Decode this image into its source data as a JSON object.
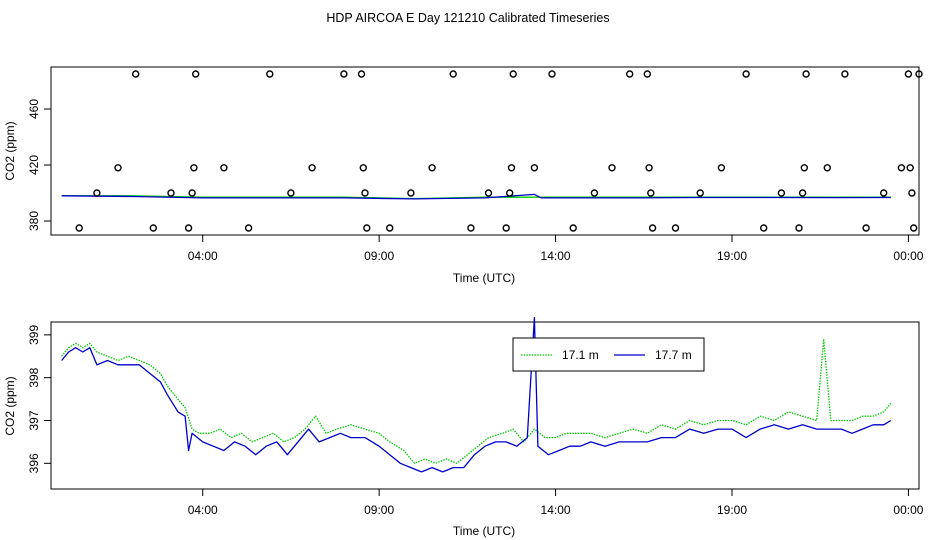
{
  "title": "HDP AIRCOA E  Day 121210  Calibrated Timeseries",
  "chart_data": [
    {
      "type": "line",
      "panel": "top",
      "xlabel": "Time (UTC)",
      "ylabel": "CO2 (ppm)",
      "x_unit": "hour",
      "xlim": [
        -0.3,
        24.3
      ],
      "ylim": [
        370,
        490
      ],
      "xticks": [
        {
          "hour": 4,
          "label": "04:00"
        },
        {
          "hour": 9,
          "label": "09:00"
        },
        {
          "hour": 14,
          "label": "14:00"
        },
        {
          "hour": 19,
          "label": "19:00"
        },
        {
          "hour": 24,
          "label": "00:00"
        }
      ],
      "yticks": [
        380,
        420,
        460
      ],
      "series": [
        {
          "color": "#00cc00",
          "points": [
            [
              0,
              398
            ],
            [
              2,
              398
            ],
            [
              4,
              397
            ],
            [
              6,
              397
            ],
            [
              8,
              397
            ],
            [
              10,
              396
            ],
            [
              12,
              397
            ],
            [
              13.4,
              397
            ],
            [
              14,
              397
            ],
            [
              16,
              397
            ],
            [
              18,
              397
            ],
            [
              20,
              397
            ],
            [
              22,
              397
            ],
            [
              23.5,
              397
            ]
          ]
        },
        {
          "color": "#0000cc",
          "points": [
            [
              0,
              398
            ],
            [
              2,
              397.5
            ],
            [
              4,
              396.5
            ],
            [
              6,
              396.5
            ],
            [
              8,
              396.5
            ],
            [
              10,
              395.8
            ],
            [
              12,
              396.5
            ],
            [
              13.4,
              399
            ],
            [
              13.6,
              396.5
            ],
            [
              16,
              396.5
            ],
            [
              18,
              396.8
            ],
            [
              20,
              396.8
            ],
            [
              22,
              396.7
            ],
            [
              23.5,
              396.8
            ]
          ]
        }
      ],
      "reference_points": {
        "marker": "open-circle",
        "levels": [
          375,
          400,
          418,
          485
        ],
        "points": [
          [
            0.5,
            375
          ],
          [
            1,
            400
          ],
          [
            1.6,
            418
          ],
          [
            2.1,
            485
          ],
          [
            2.6,
            375
          ],
          [
            3.1,
            400
          ],
          [
            3.6,
            375
          ],
          [
            3.7,
            400
          ],
          [
            3.75,
            418
          ],
          [
            3.8,
            485
          ],
          [
            4.6,
            418
          ],
          [
            5.3,
            375
          ],
          [
            5.9,
            485
          ],
          [
            6.5,
            400
          ],
          [
            7.1,
            418
          ],
          [
            8,
            485
          ],
          [
            8.5,
            485
          ],
          [
            8.55,
            418
          ],
          [
            8.6,
            400
          ],
          [
            8.65,
            375
          ],
          [
            9.3,
            375
          ],
          [
            9.9,
            400
          ],
          [
            10.5,
            418
          ],
          [
            11.1,
            485
          ],
          [
            11.6,
            375
          ],
          [
            12.1,
            400
          ],
          [
            12.6,
            375
          ],
          [
            12.7,
            400
          ],
          [
            12.75,
            418
          ],
          [
            12.8,
            485
          ],
          [
            13.4,
            418
          ],
          [
            13.9,
            485
          ],
          [
            14.5,
            375
          ],
          [
            15.1,
            400
          ],
          [
            15.6,
            418
          ],
          [
            16.1,
            485
          ],
          [
            16.6,
            485
          ],
          [
            16.65,
            418
          ],
          [
            16.7,
            400
          ],
          [
            16.75,
            375
          ],
          [
            17.4,
            375
          ],
          [
            18.1,
            400
          ],
          [
            18.7,
            418
          ],
          [
            19.4,
            485
          ],
          [
            19.9,
            375
          ],
          [
            20.4,
            400
          ],
          [
            20.9,
            375
          ],
          [
            21,
            400
          ],
          [
            21.05,
            418
          ],
          [
            21.1,
            485
          ],
          [
            21.7,
            418
          ],
          [
            22.2,
            485
          ],
          [
            22.8,
            375
          ],
          [
            23.3,
            400
          ],
          [
            23.8,
            418
          ],
          [
            24.3,
            485
          ],
          [
            24.0,
            485
          ],
          [
            24.05,
            418
          ],
          [
            24.1,
            400
          ],
          [
            24.15,
            375
          ]
        ]
      }
    },
    {
      "type": "line",
      "panel": "bottom",
      "xlabel": "Time (UTC)",
      "ylabel": "CO2 (ppm)",
      "x_unit": "hour",
      "xlim": [
        -0.3,
        24.3
      ],
      "ylim": [
        395.4,
        399.3
      ],
      "xticks": [
        {
          "hour": 4,
          "label": "04:00"
        },
        {
          "hour": 9,
          "label": "09:00"
        },
        {
          "hour": 14,
          "label": "14:00"
        },
        {
          "hour": 19,
          "label": "19:00"
        },
        {
          "hour": 24,
          "label": "00:00"
        }
      ],
      "yticks": [
        396,
        397,
        398,
        399
      ],
      "legend": {
        "position": "top-center"
      },
      "series": [
        {
          "name": "17.1 m",
          "color": "#00cc00",
          "style": "dotted",
          "points": [
            [
              0,
              398.5
            ],
            [
              0.2,
              398.7
            ],
            [
              0.4,
              398.8
            ],
            [
              0.6,
              398.7
            ],
            [
              0.8,
              398.8
            ],
            [
              1,
              398.6
            ],
            [
              1.3,
              398.5
            ],
            [
              1.6,
              398.4
            ],
            [
              1.9,
              398.5
            ],
            [
              2.2,
              398.4
            ],
            [
              2.5,
              398.3
            ],
            [
              2.8,
              398.1
            ],
            [
              3,
              397.8
            ],
            [
              3.3,
              397.5
            ],
            [
              3.5,
              397.3
            ],
            [
              3.7,
              396.8
            ],
            [
              3.9,
              396.7
            ],
            [
              4.2,
              396.7
            ],
            [
              4.5,
              396.8
            ],
            [
              4.8,
              396.6
            ],
            [
              5.1,
              396.7
            ],
            [
              5.4,
              396.5
            ],
            [
              5.7,
              396.6
            ],
            [
              6,
              396.7
            ],
            [
              6.3,
              396.5
            ],
            [
              6.6,
              396.6
            ],
            [
              6.9,
              396.8
            ],
            [
              7.2,
              397.1
            ],
            [
              7.5,
              396.7
            ],
            [
              7.8,
              396.8
            ],
            [
              8.2,
              396.9
            ],
            [
              8.6,
              396.8
            ],
            [
              9,
              396.7
            ],
            [
              9.3,
              396.5
            ],
            [
              9.7,
              396.3
            ],
            [
              10,
              396.0
            ],
            [
              10.3,
              396.1
            ],
            [
              10.6,
              396.0
            ],
            [
              10.9,
              396.1
            ],
            [
              11.2,
              396.0
            ],
            [
              11.5,
              396.2
            ],
            [
              11.8,
              396.4
            ],
            [
              12.1,
              396.6
            ],
            [
              12.5,
              396.7
            ],
            [
              12.8,
              396.8
            ],
            [
              13.1,
              396.5
            ],
            [
              13.4,
              396.8
            ],
            [
              13.7,
              396.6
            ],
            [
              14,
              396.6
            ],
            [
              14.3,
              396.7
            ],
            [
              14.6,
              396.7
            ],
            [
              15,
              396.7
            ],
            [
              15.4,
              396.6
            ],
            [
              15.8,
              396.7
            ],
            [
              16.2,
              396.8
            ],
            [
              16.6,
              396.7
            ],
            [
              17,
              396.9
            ],
            [
              17.4,
              396.8
            ],
            [
              17.8,
              397.0
            ],
            [
              18.2,
              396.9
            ],
            [
              18.6,
              397.0
            ],
            [
              19,
              397.0
            ],
            [
              19.4,
              396.9
            ],
            [
              19.8,
              397.1
            ],
            [
              20.2,
              397.0
            ],
            [
              20.6,
              397.2
            ],
            [
              21,
              397.1
            ],
            [
              21.4,
              397.0
            ],
            [
              21.6,
              398.9
            ],
            [
              21.8,
              397.0
            ],
            [
              22.1,
              397.0
            ],
            [
              22.4,
              397.0
            ],
            [
              22.7,
              397.1
            ],
            [
              23,
              397.1
            ],
            [
              23.3,
              397.2
            ],
            [
              23.5,
              397.4
            ]
          ]
        },
        {
          "name": "17.7 m",
          "color": "#0000cc",
          "style": "solid",
          "points": [
            [
              0,
              398.4
            ],
            [
              0.2,
              398.6
            ],
            [
              0.4,
              398.7
            ],
            [
              0.6,
              398.6
            ],
            [
              0.8,
              398.7
            ],
            [
              1,
              398.3
            ],
            [
              1.3,
              398.4
            ],
            [
              1.6,
              398.3
            ],
            [
              1.9,
              398.3
            ],
            [
              2.2,
              398.3
            ],
            [
              2.5,
              398.1
            ],
            [
              2.8,
              397.9
            ],
            [
              3,
              397.6
            ],
            [
              3.3,
              397.2
            ],
            [
              3.5,
              397.1
            ],
            [
              3.6,
              396.3
            ],
            [
              3.7,
              396.7
            ],
            [
              4,
              396.5
            ],
            [
              4.3,
              396.4
            ],
            [
              4.6,
              396.3
            ],
            [
              4.9,
              396.5
            ],
            [
              5.2,
              396.4
            ],
            [
              5.5,
              396.2
            ],
            [
              5.8,
              396.4
            ],
            [
              6.1,
              396.5
            ],
            [
              6.4,
              396.2
            ],
            [
              6.7,
              396.5
            ],
            [
              7,
              396.8
            ],
            [
              7.3,
              396.5
            ],
            [
              7.6,
              396.6
            ],
            [
              7.9,
              396.7
            ],
            [
              8.2,
              396.6
            ],
            [
              8.6,
              396.6
            ],
            [
              9,
              396.4
            ],
            [
              9.3,
              396.2
            ],
            [
              9.6,
              396.0
            ],
            [
              9.9,
              395.9
            ],
            [
              10.2,
              395.8
            ],
            [
              10.5,
              395.9
            ],
            [
              10.8,
              395.8
            ],
            [
              11.1,
              395.9
            ],
            [
              11.4,
              395.9
            ],
            [
              11.7,
              396.2
            ],
            [
              12,
              396.4
            ],
            [
              12.3,
              396.5
            ],
            [
              12.6,
              396.5
            ],
            [
              12.9,
              396.4
            ],
            [
              13.2,
              396.6
            ],
            [
              13.4,
              399.4
            ],
            [
              13.5,
              396.4
            ],
            [
              13.8,
              396.2
            ],
            [
              14.1,
              396.3
            ],
            [
              14.4,
              396.4
            ],
            [
              14.7,
              396.4
            ],
            [
              15,
              396.5
            ],
            [
              15.4,
              396.4
            ],
            [
              15.8,
              396.5
            ],
            [
              16.2,
              396.5
            ],
            [
              16.6,
              396.5
            ],
            [
              17,
              396.6
            ],
            [
              17.4,
              396.6
            ],
            [
              17.8,
              396.8
            ],
            [
              18.2,
              396.7
            ],
            [
              18.6,
              396.8
            ],
            [
              19,
              396.8
            ],
            [
              19.4,
              396.6
            ],
            [
              19.8,
              396.8
            ],
            [
              20.2,
              396.9
            ],
            [
              20.6,
              396.8
            ],
            [
              21,
              396.9
            ],
            [
              21.4,
              396.8
            ],
            [
              21.8,
              396.8
            ],
            [
              22.1,
              396.8
            ],
            [
              22.4,
              396.7
            ],
            [
              22.7,
              396.8
            ],
            [
              23,
              396.9
            ],
            [
              23.3,
              396.9
            ],
            [
              23.5,
              397.0
            ]
          ]
        }
      ]
    }
  ]
}
